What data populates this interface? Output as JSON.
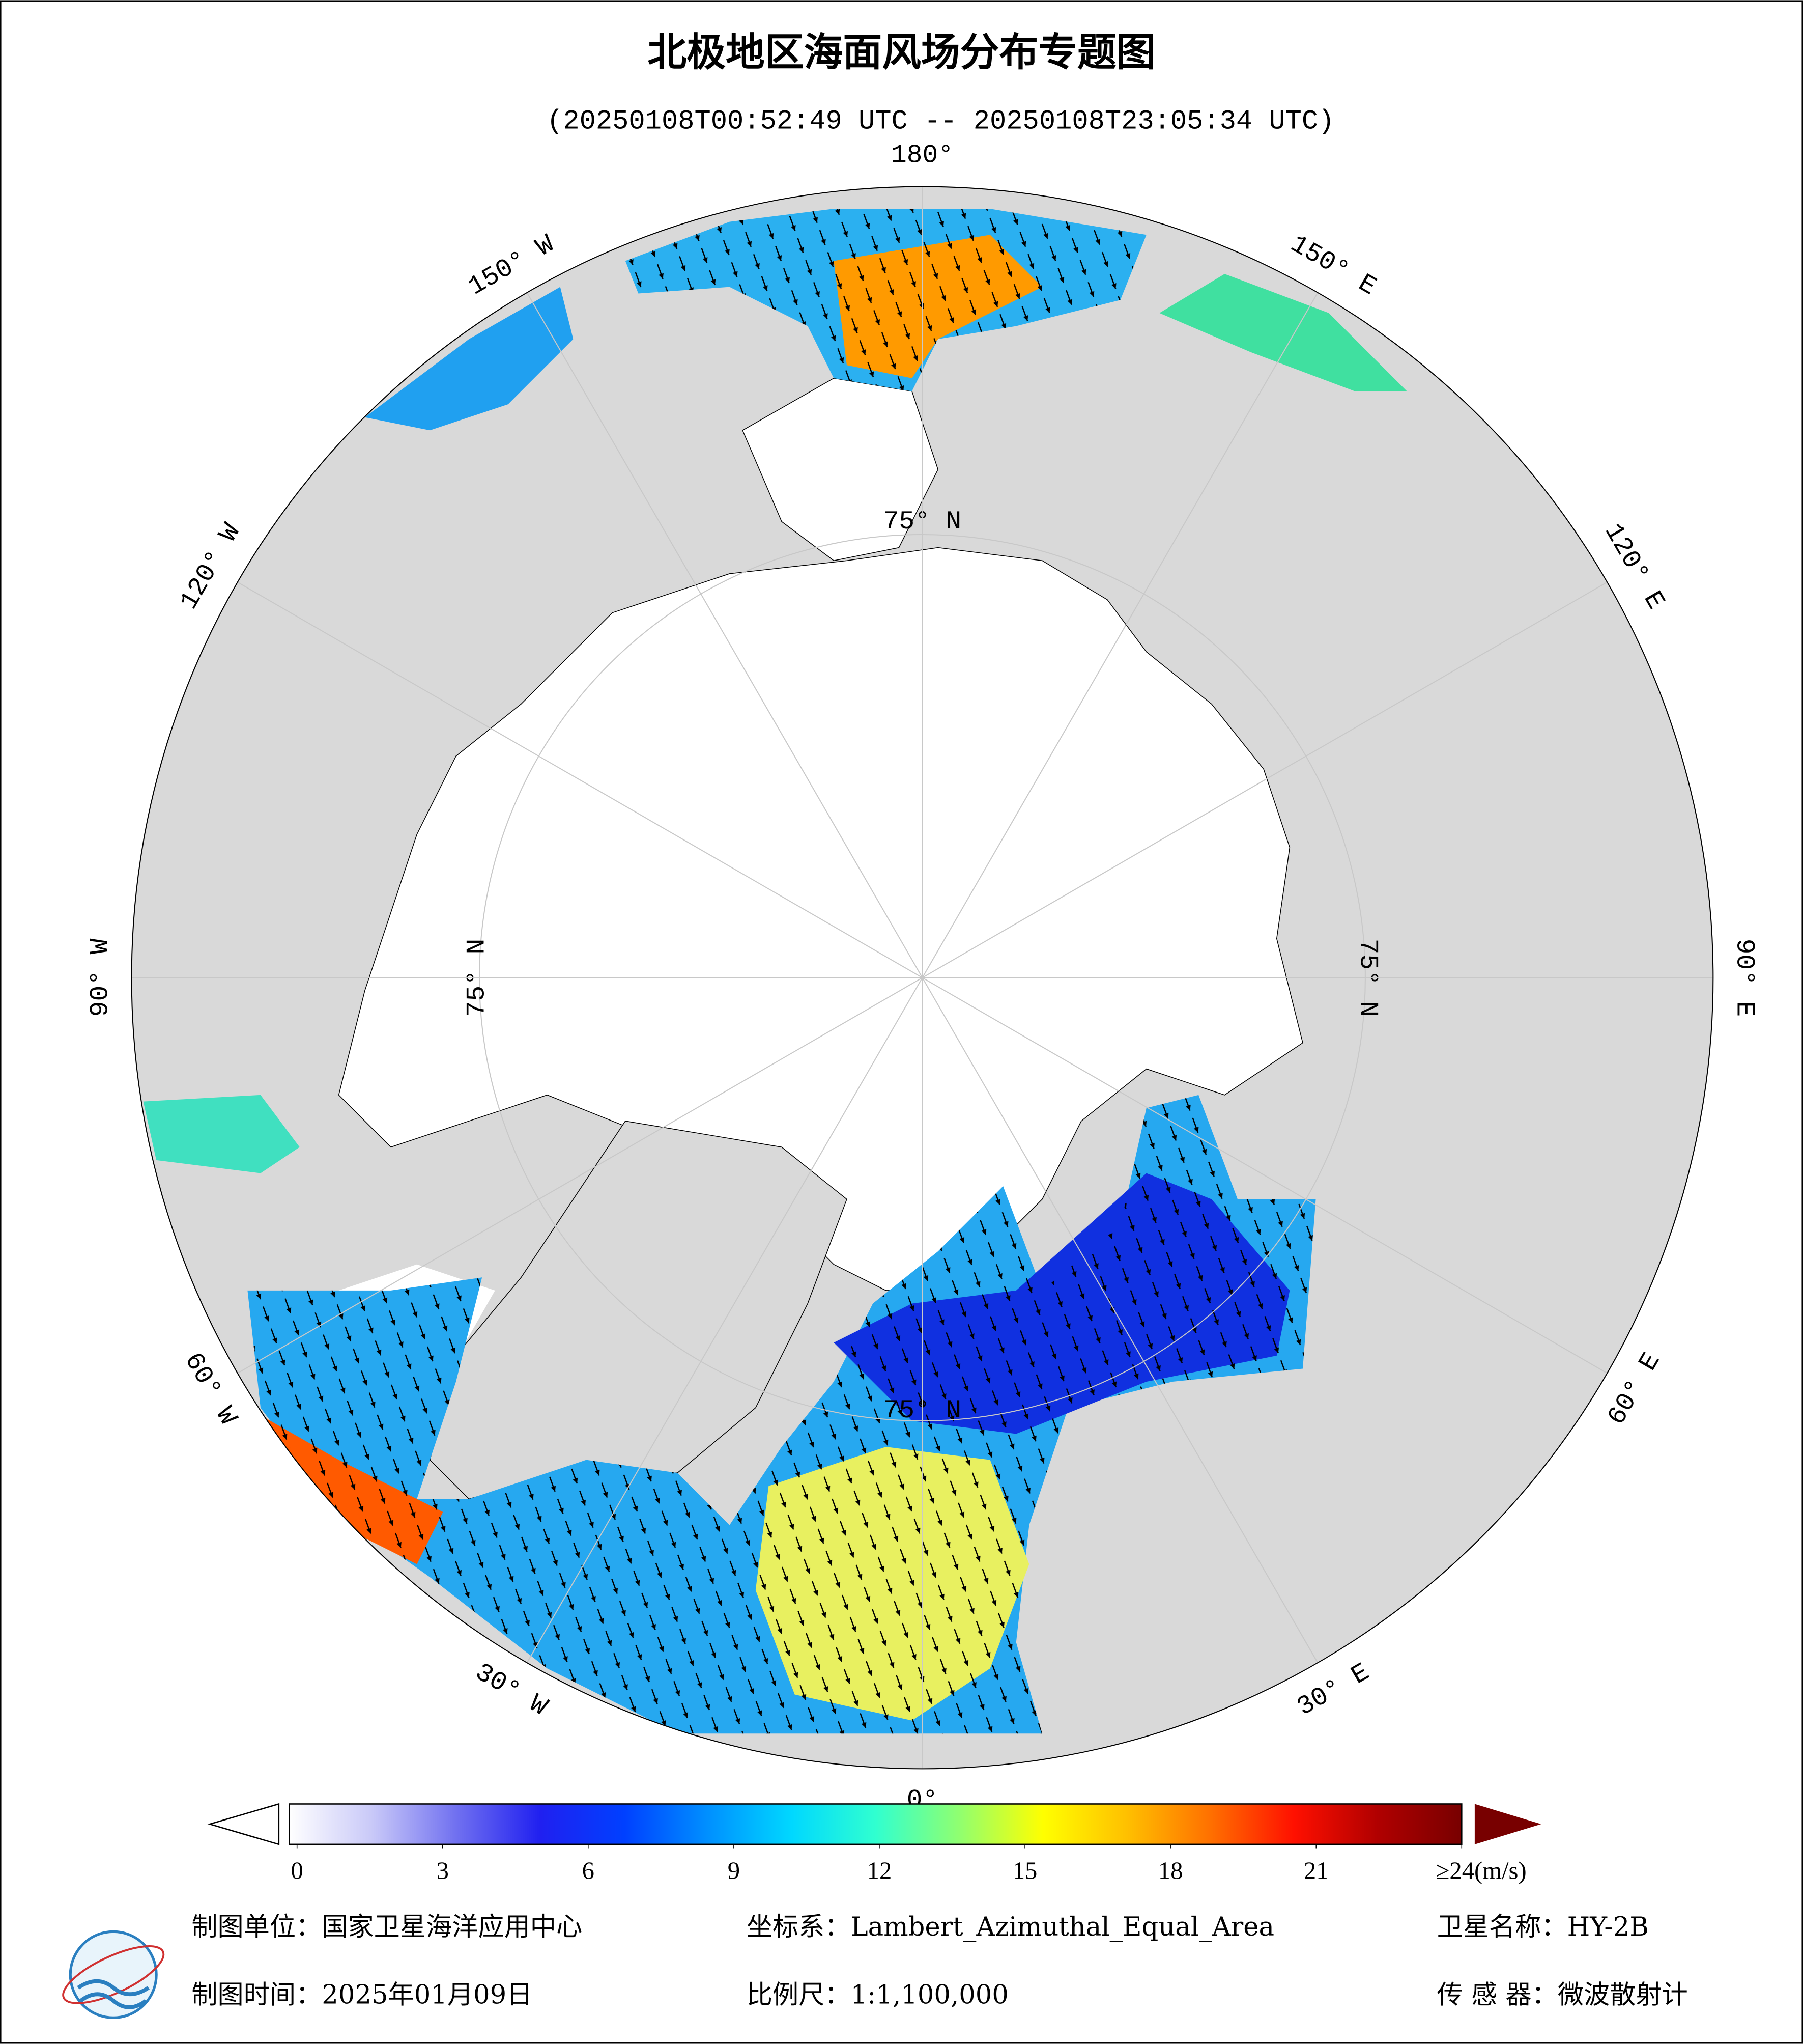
{
  "title": "北极地区海面风场分布专题图",
  "subtitle": "(20250108T00:52:49 UTC -- 20250108T23:05:34 UTC)",
  "longitude_labels": [
    {
      "value": 180,
      "label": "180°"
    },
    {
      "value": 150,
      "label": "150° E"
    },
    {
      "value": 120,
      "label": "120° E"
    },
    {
      "value": 90,
      "label": "90° E"
    },
    {
      "value": 60,
      "label": "60° E"
    },
    {
      "value": 30,
      "label": "30° E"
    },
    {
      "value": 0,
      "label": "0°"
    },
    {
      "value": -30,
      "label": "30° W"
    },
    {
      "value": -60,
      "label": "60° W"
    },
    {
      "value": -90,
      "label": "90° W"
    },
    {
      "value": -120,
      "label": "120° W"
    },
    {
      "value": -150,
      "label": "150° W"
    }
  ],
  "latitude_circles": [
    {
      "value": 75,
      "label": "75° N"
    }
  ],
  "colorbar": {
    "lim": [
      0,
      24
    ],
    "ticks": [
      0,
      3,
      6,
      9,
      12,
      15,
      18,
      21,
      {
        "value": 24,
        "label": "≥24(m/s)"
      }
    ],
    "colors": [
      "#ffffff",
      "#c8c8f8",
      "#7070f0",
      "#2020f0",
      "#0040ff",
      "#0090ff",
      "#00d8ff",
      "#30ffd0",
      "#90ff70",
      "#ffff00",
      "#ffc000",
      "#ff7000",
      "#ff1000",
      "#b00000",
      "#780000"
    ]
  },
  "footer": {
    "unit": "制图单位：国家卫星海洋应用中心",
    "crs": "坐标系：Lambert_Azimuthal_Equal_Area",
    "satellite": "卫星名称：HY-2B",
    "date": "制图时间：2025年01月09日",
    "scale": "比例尺：1:1,100,000",
    "sensor": "传 感 器：微波散射计"
  }
}
